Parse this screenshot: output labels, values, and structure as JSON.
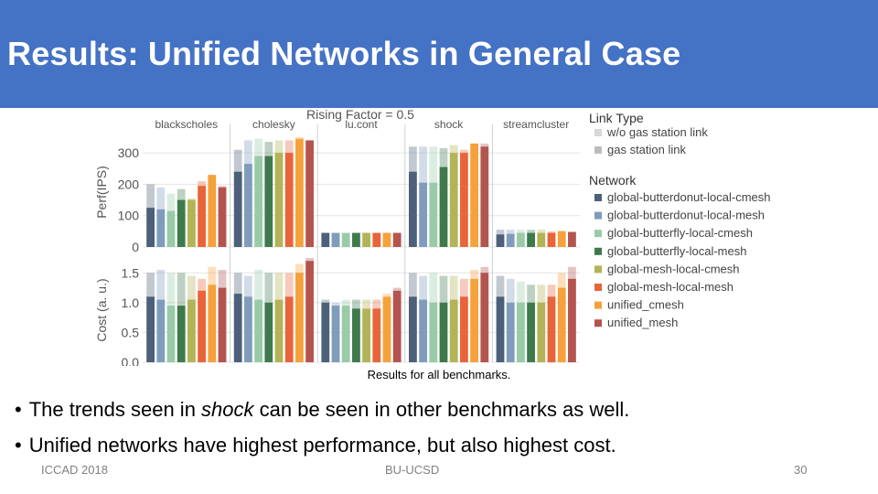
{
  "slide": {
    "title": "Results: Unified Networks in General Case",
    "caption": "Results for all benchmarks.",
    "bullets": [
      {
        "before": "The trends seen in ",
        "em": "shock",
        "after": " can be seen in other benchmarks as well."
      },
      {
        "before": "Unified networks have highest performance, but also highest cost.",
        "em": "",
        "after": ""
      }
    ],
    "bullet_glyph": "•",
    "footer": {
      "left": "ICCAD 2018",
      "center": "BU-UCSD",
      "right": "30"
    },
    "colors": {
      "title_bar": "#4472c4"
    }
  },
  "chart_data": {
    "type": "bar",
    "title": "Rising Factor = 0.5",
    "categories": [
      "blackscholes",
      "cholesky",
      "lu.cont",
      "shock",
      "streamcluster"
    ],
    "link_types": [
      "w/o gas station link",
      "gas station link"
    ],
    "series": [
      {
        "name": "global-butterdonut-local-cmesh",
        "color": "#4c6079"
      },
      {
        "name": "global-butterdonut-local-mesh",
        "color": "#7f9cbc"
      },
      {
        "name": "global-butterfly-local-cmesh",
        "color": "#98cba6"
      },
      {
        "name": "global-butterfly-local-mesh",
        "color": "#3f7a4c"
      },
      {
        "name": "global-mesh-local-cmesh",
        "color": "#b3b357"
      },
      {
        "name": "global-mesh-local-mesh",
        "color": "#e8643a"
      },
      {
        "name": "unified_cmesh",
        "color": "#f5a13c"
      },
      {
        "name": "unified_mesh",
        "color": "#b4544f"
      }
    ],
    "legend": {
      "title_link": "Link Type",
      "title_network": "Network",
      "position": "right"
    },
    "panels": [
      {
        "ylabel": "Perf(IPS)",
        "ylim": [
          0,
          350
        ],
        "yticks": [
          0,
          100,
          200,
          300
        ],
        "values": {
          "blackscholes": [
            [
              200,
              125
            ],
            [
              190,
              120
            ],
            [
              170,
              115
            ],
            [
              185,
              150
            ],
            [
              155,
              150
            ],
            [
              210,
              195
            ],
            [
              225,
              230
            ],
            [
              195,
              190
            ]
          ],
          "cholesky": [
            [
              310,
              240
            ],
            [
              340,
              265
            ],
            [
              345,
              290
            ],
            [
              335,
              290
            ],
            [
              340,
              300
            ],
            [
              340,
              300
            ],
            [
              350,
              345
            ],
            [
              340,
              340
            ]
          ],
          "lu.cont": [
            [
              45,
              45
            ],
            [
              45,
              45
            ],
            [
              45,
              45
            ],
            [
              45,
              45
            ],
            [
              45,
              45
            ],
            [
              45,
              45
            ],
            [
              45,
              45
            ],
            [
              45,
              45
            ]
          ],
          "shock": [
            [
              320,
              240
            ],
            [
              320,
              205
            ],
            [
              320,
              205
            ],
            [
              315,
              255
            ],
            [
              325,
              300
            ],
            [
              310,
              300
            ],
            [
              320,
              330
            ],
            [
              330,
              320
            ]
          ],
          "streamcluster": [
            [
              55,
              40
            ],
            [
              55,
              42
            ],
            [
              55,
              45
            ],
            [
              55,
              45
            ],
            [
              55,
              45
            ],
            [
              50,
              45
            ],
            [
              52,
              50
            ],
            [
              48,
              48
            ]
          ]
        }
      },
      {
        "ylabel": "Cost (a. u.)",
        "ylim": [
          0,
          1.75
        ],
        "yticks": [
          0.0,
          0.5,
          1.0,
          1.5
        ],
        "values": {
          "blackscholes": [
            [
              1.5,
              1.1
            ],
            [
              1.55,
              1.05
            ],
            [
              1.5,
              0.95
            ],
            [
              1.5,
              0.95
            ],
            [
              1.45,
              1.05
            ],
            [
              1.4,
              1.2
            ],
            [
              1.6,
              1.3
            ],
            [
              1.55,
              1.25
            ]
          ],
          "cholesky": [
            [
              1.5,
              1.15
            ],
            [
              1.45,
              1.1
            ],
            [
              1.55,
              1.05
            ],
            [
              1.5,
              1.0
            ],
            [
              1.5,
              1.05
            ],
            [
              1.5,
              1.1
            ],
            [
              1.65,
              1.5
            ],
            [
              1.75,
              1.7
            ]
          ],
          "lu.cont": [
            [
              1.05,
              1.0
            ],
            [
              1.0,
              0.95
            ],
            [
              1.05,
              0.95
            ],
            [
              1.05,
              0.9
            ],
            [
              1.05,
              0.9
            ],
            [
              1.05,
              0.9
            ],
            [
              1.15,
              1.1
            ],
            [
              1.25,
              1.2
            ]
          ],
          "shock": [
            [
              1.5,
              1.1
            ],
            [
              1.45,
              1.05
            ],
            [
              1.5,
              1.0
            ],
            [
              1.45,
              1.0
            ],
            [
              1.45,
              1.05
            ],
            [
              1.4,
              1.1
            ],
            [
              1.55,
              1.4
            ],
            [
              1.6,
              1.5
            ]
          ],
          "streamcluster": [
            [
              1.45,
              1.1
            ],
            [
              1.4,
              1.0
            ],
            [
              1.35,
              1.0
            ],
            [
              1.3,
              1.0
            ],
            [
              1.3,
              1.0
            ],
            [
              1.3,
              1.1
            ],
            [
              1.5,
              1.25
            ],
            [
              1.6,
              1.4
            ]
          ]
        }
      }
    ],
    "grid": true
  }
}
